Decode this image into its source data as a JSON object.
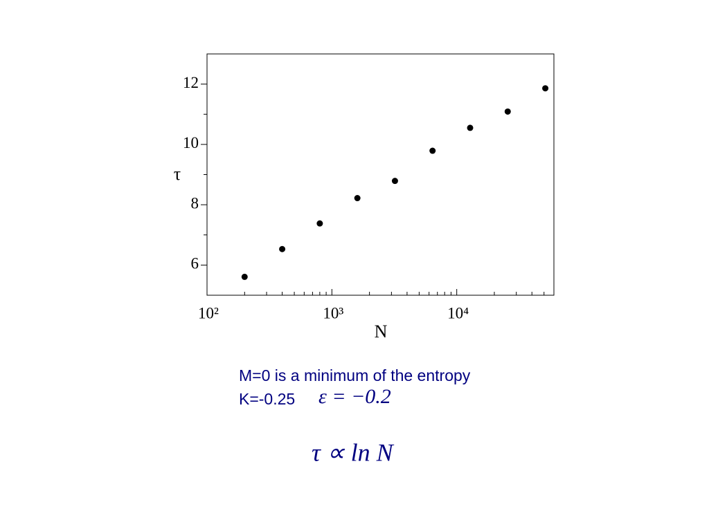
{
  "chart_data": {
    "type": "scatter",
    "x_label": "N",
    "y_label": "τ",
    "xscale": "log",
    "x": [
      200,
      400,
      800,
      1600,
      3200,
      6400,
      12800,
      25600,
      51200
    ],
    "values": [
      5.61,
      6.53,
      7.38,
      8.22,
      8.79,
      9.79,
      10.55,
      11.09,
      11.86
    ],
    "color": "#000000",
    "xlim": [
      100,
      60000
    ],
    "ylim": [
      5,
      13
    ],
    "xticks": [
      {
        "value": 100,
        "label": "10²"
      },
      {
        "value": 1000,
        "label": "10³"
      },
      {
        "value": 10000,
        "label": "10⁴"
      }
    ],
    "xminor_ticks": [
      200,
      300,
      400,
      500,
      600,
      700,
      800,
      900,
      2000,
      3000,
      4000,
      5000,
      6000,
      7000,
      8000,
      9000,
      20000,
      30000,
      40000,
      50000
    ],
    "yticks": [
      6,
      8,
      10,
      12
    ],
    "yminor_ticks": [
      7,
      9,
      11
    ],
    "annotations": [
      "M=0 is a minimum of the entropy",
      "K=-0.25",
      "ε = −0.2",
      "τ ∝ ln N"
    ]
  }
}
